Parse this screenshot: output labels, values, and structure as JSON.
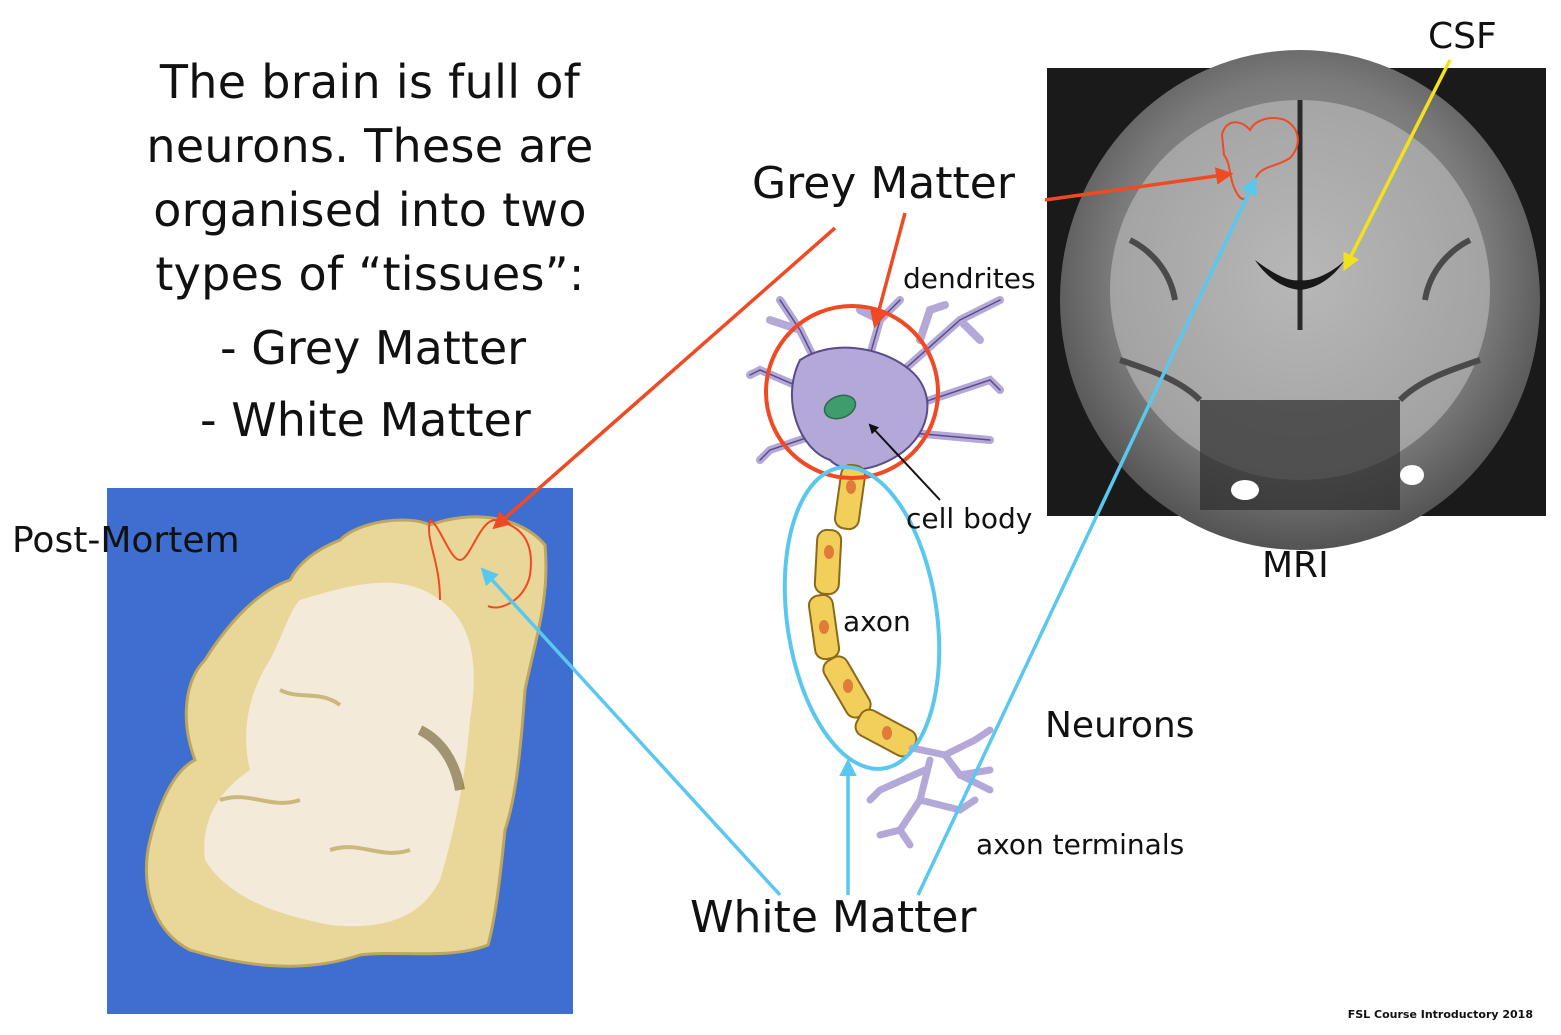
{
  "intro": {
    "lines": [
      "The brain is full of",
      "neurons. These are",
      "organised into two",
      "types of “tissues”:"
    ],
    "bullets": [
      "- Grey Matter",
      "- White Matter"
    ]
  },
  "labels": {
    "grey_matter": "Grey Matter",
    "white_matter": "White Matter",
    "csf": "CSF",
    "mri": "MRI",
    "post_mortem": "Post-Mortem",
    "neurons": "Neurons",
    "dendrites": "dendrites",
    "cell_body": "cell body",
    "axon": "axon",
    "axon_terminals": "axon terminals"
  },
  "footer": "FSL Course Introductory 2018",
  "colors": {
    "grey_matter_arrow": "#f04a24",
    "white_matter_arrow": "#5ac8ee",
    "csf_arrow": "#f2e21a",
    "neuron_fill": "#b4a8d8",
    "axon_segment": "#f2cf5a",
    "photo_background": "#3d6ed0"
  }
}
